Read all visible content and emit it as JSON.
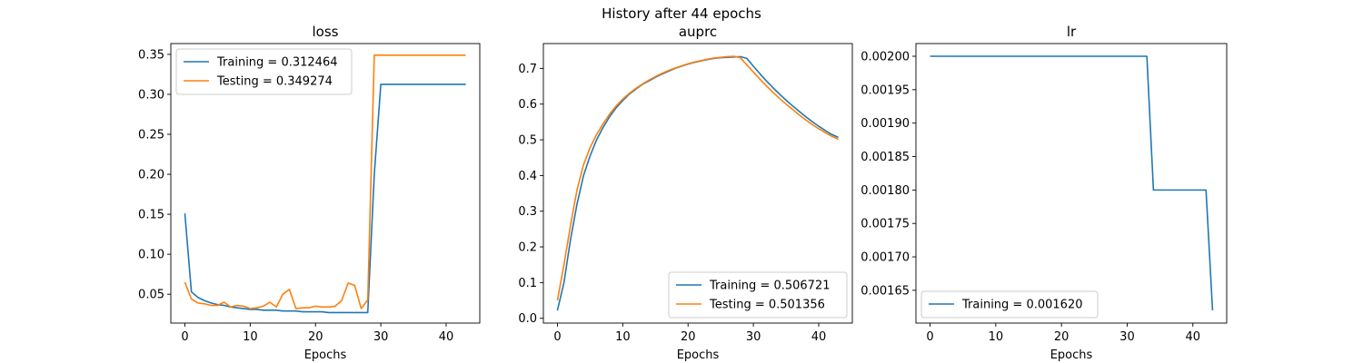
{
  "figure": {
    "title": "History after 44 epochs"
  },
  "colors": {
    "training": "#1f77b4",
    "testing": "#ff7f0e"
  },
  "chart_data": [
    {
      "type": "line",
      "title": "loss",
      "xlabel": "Epochs",
      "ylabel": "",
      "xlim": [
        -2.15,
        45.15
      ],
      "ylim": [
        0.0139,
        0.3635
      ],
      "xticks": [
        0,
        10,
        20,
        30,
        40
      ],
      "yticks": [
        0.05,
        0.1,
        0.15,
        0.2,
        0.25,
        0.3,
        0.35
      ],
      "ytick_labels": [
        "0.05",
        "0.10",
        "0.15",
        "0.20",
        "0.25",
        "0.30",
        "0.35"
      ],
      "legend_position": "upper left",
      "x": [
        0,
        1,
        2,
        3,
        4,
        5,
        6,
        7,
        8,
        9,
        10,
        11,
        12,
        13,
        14,
        15,
        16,
        17,
        18,
        19,
        20,
        21,
        22,
        23,
        24,
        25,
        26,
        27,
        28,
        29,
        30,
        31,
        32,
        33,
        34,
        35,
        36,
        37,
        38,
        39,
        40,
        41,
        42,
        43
      ],
      "series": [
        {
          "name": "Training = 0.312464",
          "color": "#1f77b4",
          "values": [
            0.151,
            0.053,
            0.046,
            0.042,
            0.039,
            0.037,
            0.036,
            0.034,
            0.033,
            0.032,
            0.031,
            0.031,
            0.03,
            0.03,
            0.03,
            0.029,
            0.029,
            0.029,
            0.028,
            0.028,
            0.028,
            0.028,
            0.027,
            0.027,
            0.027,
            0.027,
            0.027,
            0.027,
            0.027,
            0.2,
            0.3125,
            0.3125,
            0.3125,
            0.3125,
            0.3125,
            0.3125,
            0.3125,
            0.3125,
            0.3125,
            0.3125,
            0.3125,
            0.3125,
            0.3125,
            0.3125
          ]
        },
        {
          "name": "Testing = 0.349274",
          "color": "#ff7f0e",
          "values": [
            0.065,
            0.044,
            0.039,
            0.038,
            0.036,
            0.036,
            0.04,
            0.034,
            0.036,
            0.035,
            0.032,
            0.033,
            0.035,
            0.04,
            0.034,
            0.05,
            0.056,
            0.032,
            0.033,
            0.033,
            0.035,
            0.034,
            0.034,
            0.035,
            0.042,
            0.064,
            0.061,
            0.032,
            0.043,
            0.349,
            0.349,
            0.349,
            0.349,
            0.349,
            0.349,
            0.349,
            0.349,
            0.349,
            0.349,
            0.349,
            0.349,
            0.349,
            0.349,
            0.349
          ]
        }
      ]
    },
    {
      "type": "line",
      "title": "auprc",
      "xlabel": "Epochs",
      "ylabel": "",
      "xlim": [
        -2.15,
        45.15
      ],
      "ylim": [
        -0.0134,
        0.7696
      ],
      "xticks": [
        0,
        10,
        20,
        30,
        40
      ],
      "yticks": [
        0.0,
        0.1,
        0.2,
        0.3,
        0.4,
        0.5,
        0.6,
        0.7
      ],
      "ytick_labels": [
        "0.0",
        "0.1",
        "0.2",
        "0.3",
        "0.4",
        "0.5",
        "0.6",
        "0.7"
      ],
      "legend_position": "lower right",
      "x": [
        0,
        1,
        2,
        3,
        4,
        5,
        6,
        7,
        8,
        9,
        10,
        11,
        12,
        13,
        14,
        15,
        16,
        17,
        18,
        19,
        20,
        21,
        22,
        23,
        24,
        25,
        26,
        27,
        28,
        29,
        30,
        31,
        32,
        33,
        34,
        35,
        36,
        37,
        38,
        39,
        40,
        41,
        42,
        43
      ],
      "series": [
        {
          "name": "Training = 0.506721",
          "color": "#1f77b4",
          "values": [
            0.022,
            0.1,
            0.22,
            0.32,
            0.4,
            0.455,
            0.5,
            0.535,
            0.565,
            0.59,
            0.61,
            0.628,
            0.642,
            0.655,
            0.665,
            0.675,
            0.684,
            0.692,
            0.7,
            0.706,
            0.712,
            0.717,
            0.721,
            0.725,
            0.728,
            0.73,
            0.731,
            0.732,
            0.733,
            0.728,
            0.706,
            0.685,
            0.665,
            0.646,
            0.628,
            0.611,
            0.595,
            0.58,
            0.565,
            0.551,
            0.538,
            0.526,
            0.515,
            0.5067
          ]
        },
        {
          "name": "Testing = 0.501356",
          "color": "#ff7f0e",
          "values": [
            0.05,
            0.15,
            0.26,
            0.36,
            0.43,
            0.478,
            0.515,
            0.545,
            0.572,
            0.595,
            0.614,
            0.63,
            0.644,
            0.656,
            0.667,
            0.677,
            0.686,
            0.694,
            0.701,
            0.707,
            0.713,
            0.718,
            0.722,
            0.726,
            0.729,
            0.731,
            0.733,
            0.734,
            0.73,
            0.71,
            0.69,
            0.67,
            0.651,
            0.633,
            0.616,
            0.6,
            0.585,
            0.57,
            0.556,
            0.543,
            0.531,
            0.52,
            0.51,
            0.5014
          ]
        }
      ]
    },
    {
      "type": "line",
      "title": "lr",
      "xlabel": "Epochs",
      "ylabel": "",
      "xlim": [
        -2.15,
        45.15
      ],
      "ylim": [
        0.001601,
        0.002019
      ],
      "xticks": [
        0,
        10,
        20,
        30,
        40
      ],
      "yticks": [
        0.00165,
        0.0017,
        0.00175,
        0.0018,
        0.00185,
        0.0019,
        0.00195,
        0.002
      ],
      "ytick_labels": [
        "0.00165",
        "0.00170",
        "0.00175",
        "0.00180",
        "0.00185",
        "0.00190",
        "0.00195",
        "0.00200"
      ],
      "legend_position": "lower left",
      "x": [
        0,
        1,
        2,
        3,
        4,
        5,
        6,
        7,
        8,
        9,
        10,
        11,
        12,
        13,
        14,
        15,
        16,
        17,
        18,
        19,
        20,
        21,
        22,
        23,
        24,
        25,
        26,
        27,
        28,
        29,
        30,
        31,
        32,
        33,
        34,
        35,
        36,
        37,
        38,
        39,
        40,
        41,
        42,
        43
      ],
      "series": [
        {
          "name": "Training = 0.001620",
          "color": "#1f77b4",
          "values": [
            0.002,
            0.002,
            0.002,
            0.002,
            0.002,
            0.002,
            0.002,
            0.002,
            0.002,
            0.002,
            0.002,
            0.002,
            0.002,
            0.002,
            0.002,
            0.002,
            0.002,
            0.002,
            0.002,
            0.002,
            0.002,
            0.002,
            0.002,
            0.002,
            0.002,
            0.002,
            0.002,
            0.002,
            0.002,
            0.002,
            0.002,
            0.002,
            0.002,
            0.002,
            0.0018,
            0.0018,
            0.0018,
            0.0018,
            0.0018,
            0.0018,
            0.0018,
            0.0018,
            0.0018,
            0.00162
          ]
        }
      ]
    }
  ]
}
